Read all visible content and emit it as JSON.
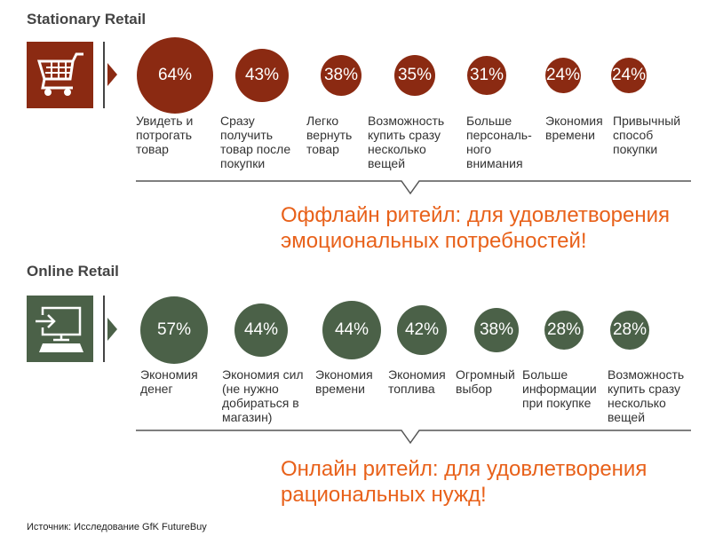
{
  "colors": {
    "stationary": "#8b2a12",
    "online": "#4b6148",
    "conclusion": "#e8611a"
  },
  "stationary": {
    "title": "Stationary Retail",
    "icon": "shopping-cart-icon",
    "items": [
      {
        "value": "64%",
        "label": "Увидеть и\nпотрогать\nтовар"
      },
      {
        "value": "43%",
        "label": "Сразу\nполучить\nтовар после\nпокупки"
      },
      {
        "value": "38%",
        "label": "Легко\nвернуть\nтовар"
      },
      {
        "value": "35%",
        "label": "Возможность\nкупить сразу\nнесколько\nвещей"
      },
      {
        "value": "31%",
        "label": "Больше\nперсональ-\nного\nвнимания"
      },
      {
        "value": "24%",
        "label": "Экономия\nвремени"
      },
      {
        "value": "24%",
        "label": "Привычный\nспособ\nпокупки"
      }
    ],
    "conclusion": [
      "Оффлайн ритейл: для удовлетворения",
      "эмоциональных потребностей!"
    ]
  },
  "online": {
    "title": "Online Retail",
    "icon": "computer-login-icon",
    "items": [
      {
        "value": "57%",
        "label": "Экономия\nденег"
      },
      {
        "value": "44%",
        "label": "Экономия сил\n(не нужно\nдобираться в\nмагазин)"
      },
      {
        "value": "44%",
        "label": "Экономия\nвремени"
      },
      {
        "value": "42%",
        "label": "Экономия\nтоплива"
      },
      {
        "value": "38%",
        "label": "Огромный\nвыбор"
      },
      {
        "value": "28%",
        "label": "Больше\nинформации\nпри покупке"
      },
      {
        "value": "28%",
        "label": "Возможность\nкупить сразу\nнесколько\nвещей"
      }
    ],
    "conclusion": [
      "Онлайн ритейл: для удовлетворения",
      "рациональных нужд!"
    ]
  },
  "source": "Источник: Исследование GfK FutureBuy"
}
